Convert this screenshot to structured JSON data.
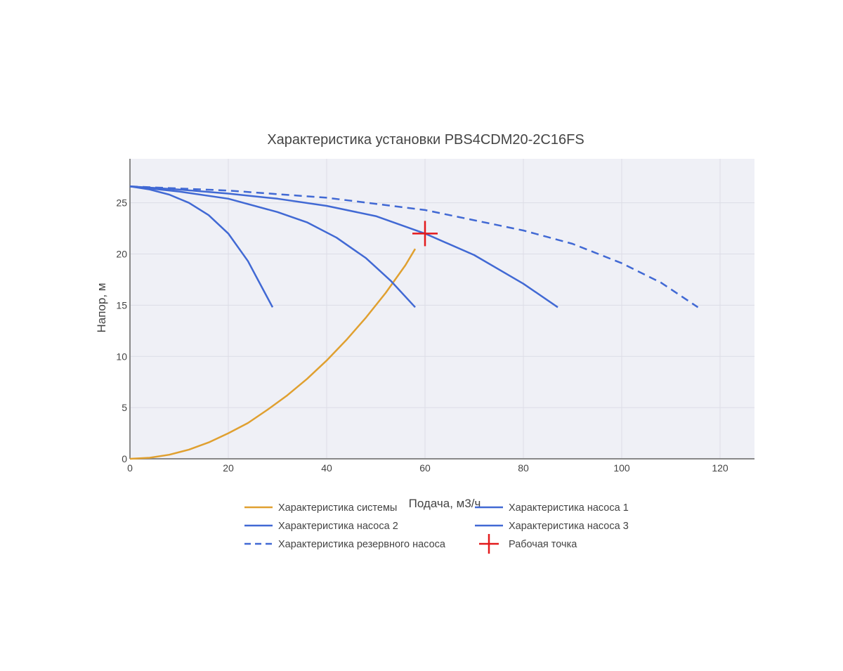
{
  "chart_data": {
    "type": "line",
    "title": "Характеристика установки PBS4CDM20-2C16FS",
    "xlabel": "Подача, м3/ч",
    "ylabel": "Напор, м",
    "xlim": [
      0,
      127
    ],
    "ylim": [
      0,
      29.3
    ],
    "xticks": [
      0,
      20,
      40,
      60,
      80,
      100,
      120
    ],
    "yticks": [
      0,
      5,
      10,
      15,
      20,
      25
    ],
    "grid": true,
    "legend_position": "bottom",
    "series": [
      {
        "name": "Характеристика системы",
        "color": "#e0a030",
        "dash": "solid",
        "x": [
          0,
          4,
          8,
          12,
          16,
          20,
          24,
          28,
          32,
          36,
          40,
          44,
          48,
          52,
          56,
          58
        ],
        "y": [
          0,
          0.1,
          0.4,
          0.9,
          1.6,
          2.5,
          3.5,
          4.8,
          6.2,
          7.8,
          9.6,
          11.6,
          13.8,
          16.2,
          18.9,
          20.5
        ]
      },
      {
        "name": "Характеристика насоса 1",
        "color": "#4169d4",
        "dash": "solid",
        "x": [
          0,
          4,
          8,
          12,
          16,
          20,
          24,
          26,
          29
        ],
        "y": [
          26.6,
          26.3,
          25.8,
          25.0,
          23.8,
          22.0,
          19.3,
          17.5,
          14.8
        ]
      },
      {
        "name": "Характеристика насоса 2",
        "color": "#4169d4",
        "dash": "solid",
        "x": [
          0,
          10,
          20,
          30,
          36,
          42,
          48,
          53,
          58
        ],
        "y": [
          26.6,
          26.1,
          25.4,
          24.1,
          23.1,
          21.6,
          19.6,
          17.4,
          14.8
        ]
      },
      {
        "name": "Характеристика насоса 3",
        "color": "#4169d4",
        "dash": "solid",
        "x": [
          0,
          10,
          20,
          30,
          40,
          50,
          60,
          70,
          80,
          87
        ],
        "y": [
          26.6,
          26.3,
          25.9,
          25.4,
          24.7,
          23.7,
          22.0,
          19.9,
          17.1,
          14.8
        ]
      },
      {
        "name": "Характеристика резервного насоса",
        "color": "#4169d4",
        "dash": "dash",
        "x": [
          0,
          20,
          40,
          60,
          80,
          90,
          100,
          108,
          115.5
        ],
        "y": [
          26.6,
          26.2,
          25.5,
          24.3,
          22.3,
          21.0,
          19.1,
          17.2,
          14.8
        ]
      }
    ],
    "operating_point": {
      "name": "Рабочая точка",
      "color": "#e31a1c",
      "x": 60,
      "y": 22
    }
  }
}
